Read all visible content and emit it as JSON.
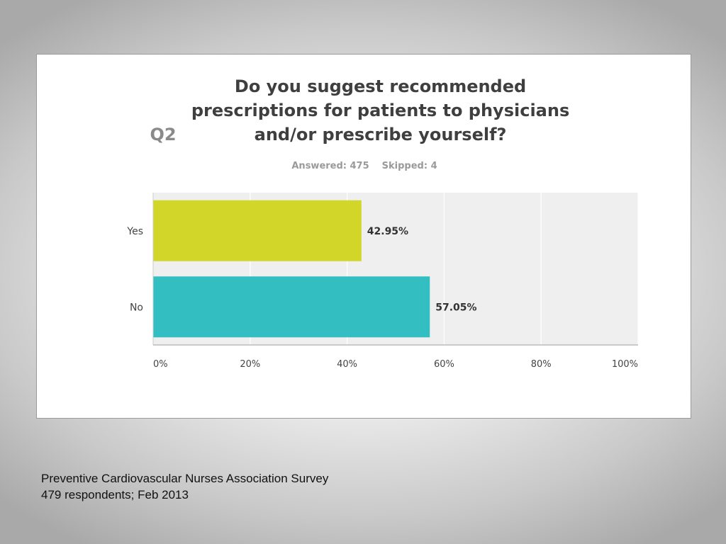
{
  "question": {
    "number": "Q2",
    "text": "Do you suggest recommended prescriptions for patients to physicians and/or prescribe yourself?"
  },
  "meta": {
    "answered": "Answered: 475",
    "skipped": "Skipped: 4"
  },
  "chart_data": {
    "type": "bar",
    "orientation": "horizontal",
    "categories": [
      "Yes",
      "No"
    ],
    "values": [
      42.95,
      57.05
    ],
    "value_labels": [
      "42.95%",
      "57.05%"
    ],
    "bar_colors": [
      "#d1d629",
      "#33bec1"
    ],
    "xlim": [
      0,
      100
    ],
    "x_ticks": [
      "0%",
      "20%",
      "40%",
      "60%",
      "80%",
      "100%"
    ],
    "grid": true
  },
  "footer": {
    "line1": "Preventive Cardiovascular Nurses Association Survey",
    "line2": "479 respondents; Feb 2013"
  }
}
